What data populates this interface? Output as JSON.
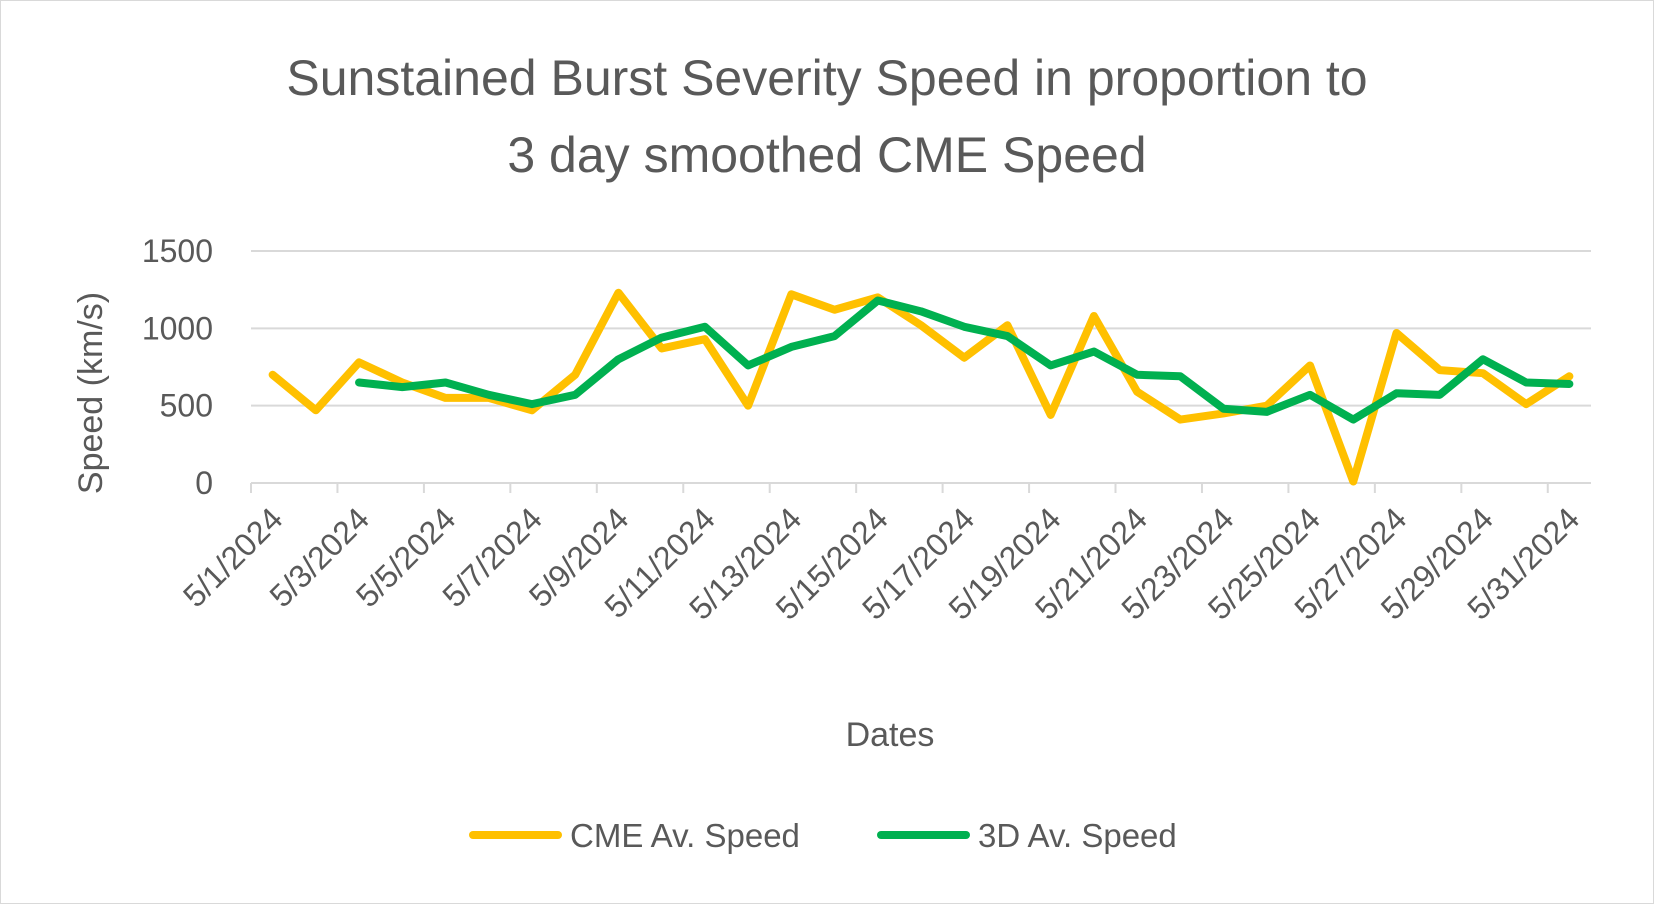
{
  "chart_data": {
    "type": "line",
    "title_lines": [
      "Sunstained Burst Severity Speed in proportion to",
      "3 day smoothed CME Speed"
    ],
    "xlabel": "Dates",
    "ylabel": "Speed (km/s)",
    "ylim": [
      0,
      1500
    ],
    "yticks": [
      0,
      500,
      1000,
      1500
    ],
    "grid": true,
    "legend_position": "bottom",
    "x": [
      "5/1/2024",
      "5/2/2024",
      "5/3/2024",
      "5/4/2024",
      "5/5/2024",
      "5/6/2024",
      "5/7/2024",
      "5/8/2024",
      "5/9/2024",
      "5/10/2024",
      "5/11/2024",
      "5/12/2024",
      "5/13/2024",
      "5/14/2024",
      "5/15/2024",
      "5/16/2024",
      "5/17/2024",
      "5/18/2024",
      "5/19/2024",
      "5/20/2024",
      "5/21/2024",
      "5/22/2024",
      "5/23/2024",
      "5/24/2024",
      "5/25/2024",
      "5/26/2024",
      "5/27/2024",
      "5/28/2024",
      "5/29/2024",
      "5/30/2024",
      "5/31/2024"
    ],
    "tick_labels": [
      "5/1/2024",
      "5/3/2024",
      "5/5/2024",
      "5/7/2024",
      "5/9/2024",
      "5/11/2024",
      "5/13/2024",
      "5/15/2024",
      "5/17/2024",
      "5/19/2024",
      "5/21/2024",
      "5/23/2024",
      "5/25/2024",
      "5/27/2024",
      "5/29/2024",
      "5/31/2024"
    ],
    "series": [
      {
        "name": "CME Av. Speed",
        "color": "#FFC000",
        "values": [
          700,
          470,
          780,
          650,
          550,
          550,
          470,
          700,
          1230,
          870,
          930,
          500,
          1220,
          1120,
          1200,
          1020,
          810,
          1020,
          440,
          1080,
          590,
          410,
          450,
          500,
          760,
          10,
          970,
          730,
          710,
          510,
          690
        ]
      },
      {
        "name": "3D Av. Speed",
        "color": "#00B050",
        "values": [
          null,
          null,
          650,
          620,
          650,
          570,
          510,
          570,
          800,
          940,
          1010,
          760,
          880,
          950,
          1180,
          1110,
          1010,
          950,
          760,
          850,
          700,
          690,
          480,
          460,
          570,
          410,
          580,
          570,
          800,
          650,
          640
        ]
      }
    ]
  }
}
